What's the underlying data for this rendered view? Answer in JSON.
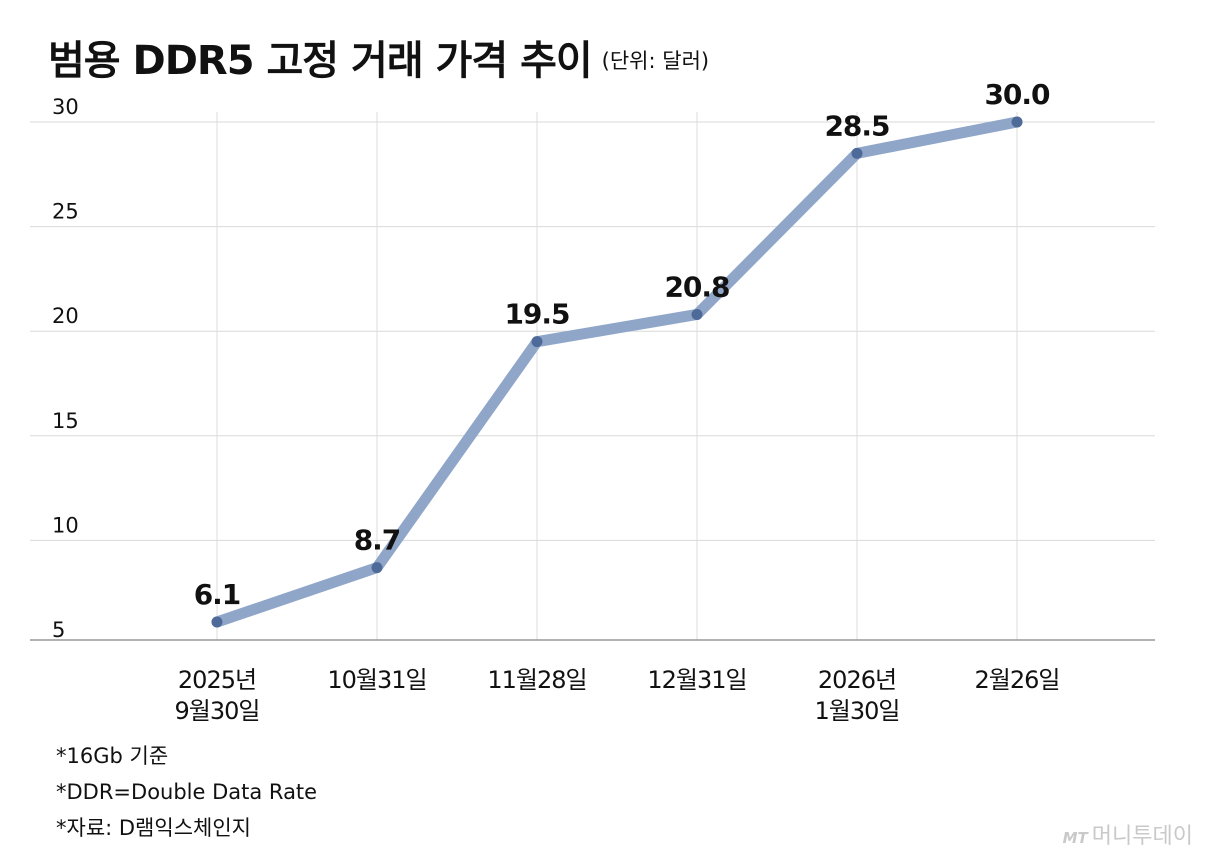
{
  "title": "범용 DDR5 고정 거래 가격 추이",
  "unit": "(단위: 달러)",
  "chart_data": {
    "type": "line",
    "title": "범용 DDR5 고정 거래 가격 추이",
    "unit": "(단위: 달러)",
    "categories": [
      [
        "2025년",
        "9월30일"
      ],
      [
        "10월31일"
      ],
      [
        "11월28일"
      ],
      [
        "12월31일"
      ],
      [
        "2026년",
        "1월30일"
      ],
      [
        "2월26일"
      ]
    ],
    "values": [
      6.1,
      8.7,
      19.5,
      20.8,
      28.5,
      30.0
    ],
    "value_labels": [
      "6.1",
      "8.7",
      "19.5",
      "20.8",
      "28.5",
      "30.0"
    ],
    "y_ticks": [
      5,
      10,
      15,
      20,
      25,
      30
    ],
    "ylim": [
      5,
      30
    ],
    "grid": true,
    "series_color": "#8fa6c9",
    "point_color": "#4e6a99"
  },
  "notes": [
    "*16Gb 기준",
    "*DDR=Double Data Rate",
    "*자료: D램익스체인지"
  ],
  "brand": {
    "mark": "MT",
    "name": "머니투데이"
  }
}
